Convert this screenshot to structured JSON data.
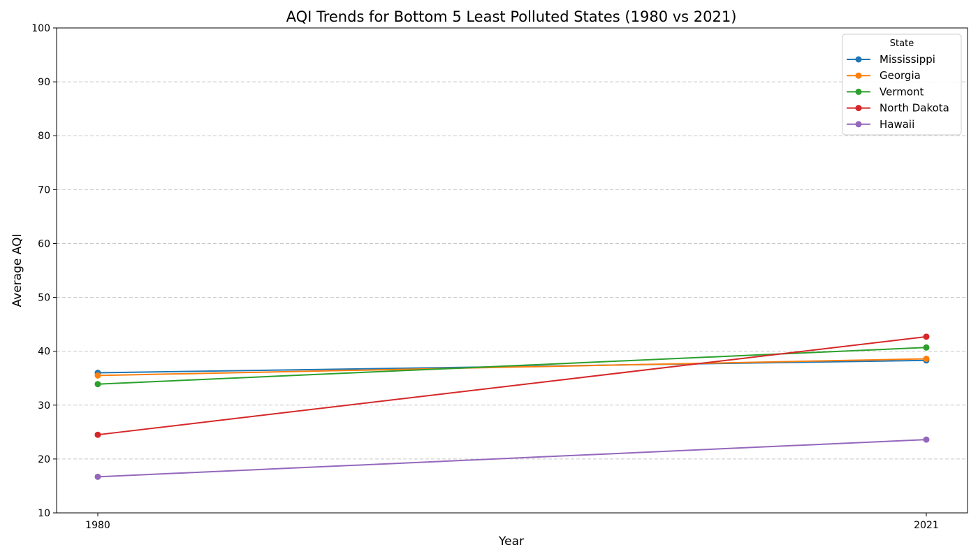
{
  "chart_data": {
    "type": "line",
    "title": "AQI Trends for Bottom 5 Least Polluted States (1980 vs 2021)",
    "xlabel": "Year",
    "ylabel": "Average AQI",
    "x": [
      1980,
      2021
    ],
    "x_tick_labels": [
      "1980",
      "2021"
    ],
    "ylim": [
      10,
      100
    ],
    "y_ticks": [
      10,
      20,
      30,
      40,
      50,
      60,
      70,
      80,
      90,
      100
    ],
    "grid": "y-dashed",
    "legend": {
      "title": "State",
      "placement": "top-right"
    },
    "series": [
      {
        "name": "Mississippi",
        "values": [
          36.0,
          38.3
        ],
        "color": "#1f77b4"
      },
      {
        "name": "Georgia",
        "values": [
          35.5,
          38.6
        ],
        "color": "#ff7f0e"
      },
      {
        "name": "Vermont",
        "values": [
          33.9,
          40.7
        ],
        "color": "#2ca02c"
      },
      {
        "name": "North Dakota",
        "values": [
          24.5,
          42.7
        ],
        "color": "#d62728"
      },
      {
        "name": "Hawaii",
        "values": [
          16.7,
          23.6
        ],
        "color": "#9467bd"
      }
    ]
  }
}
